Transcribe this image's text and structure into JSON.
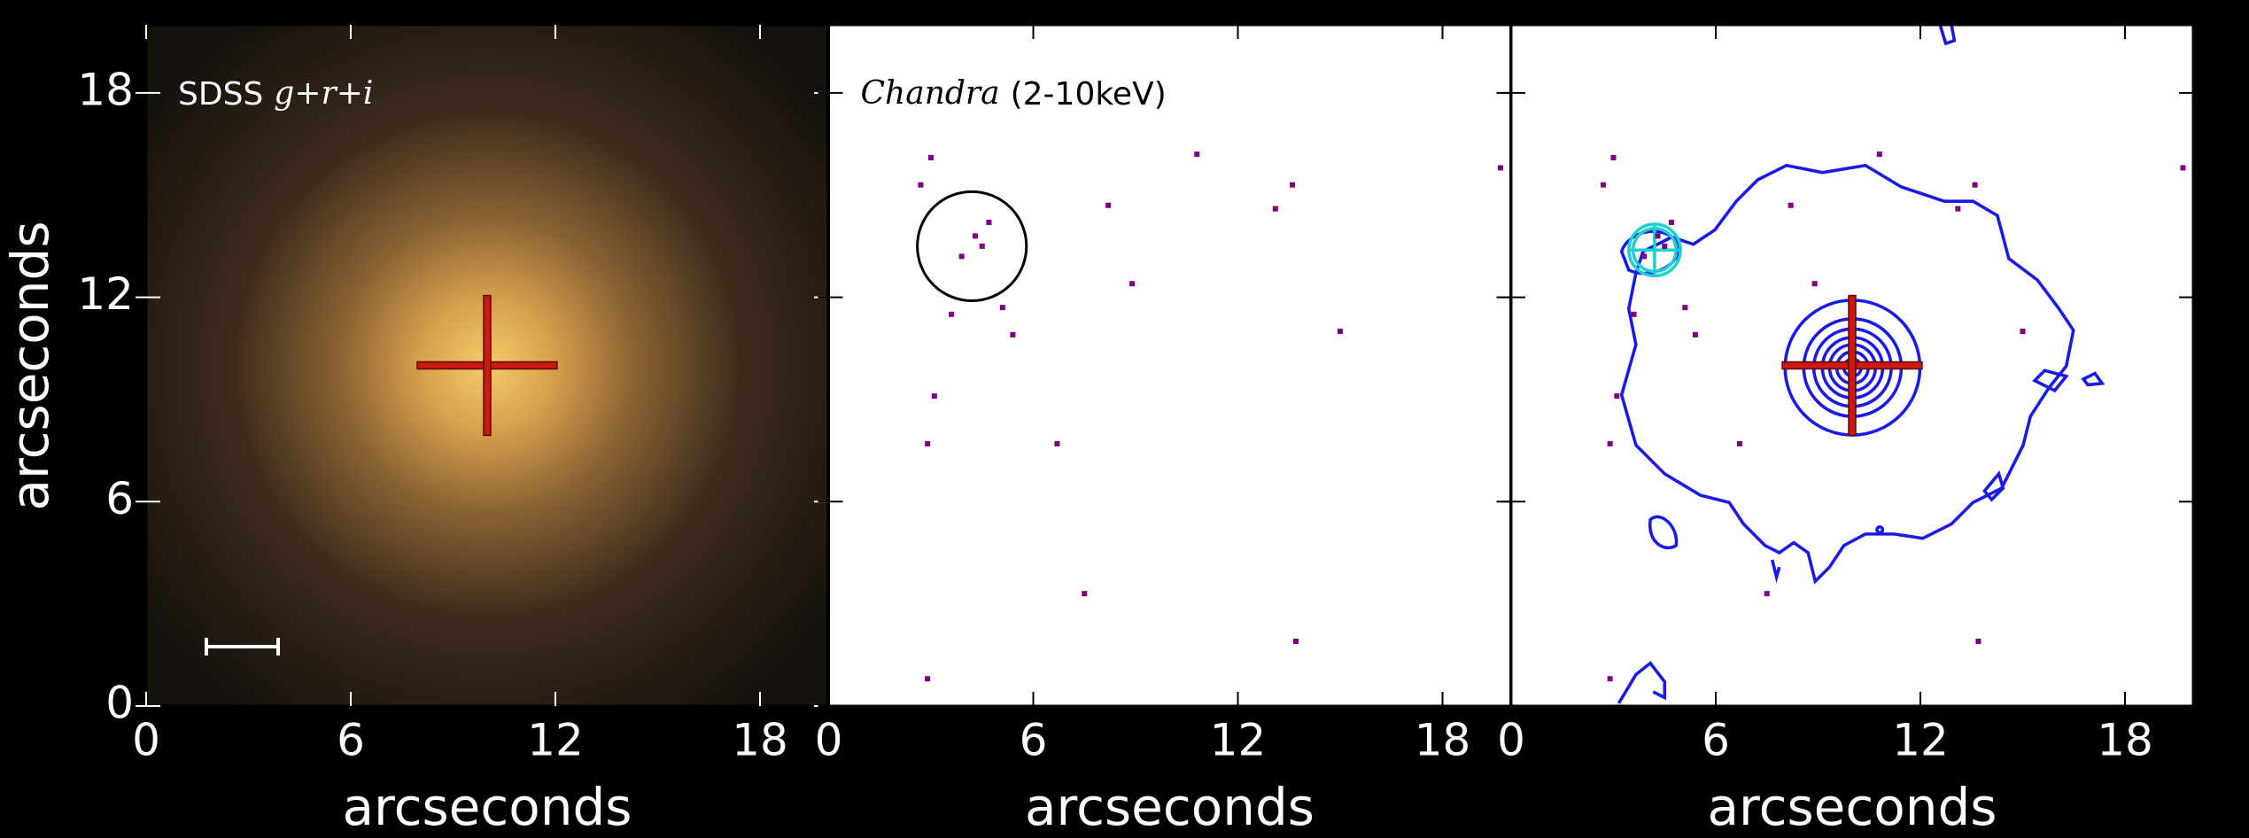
{
  "chart_data": [
    {
      "type": "image",
      "annotation": [
        "SDSS",
        "g+r+i"
      ],
      "xlabel": "arcseconds",
      "ylabel": "arcseconds",
      "xlim": [
        0,
        20
      ],
      "ylim": [
        0,
        20
      ],
      "xticks": [
        0,
        6,
        12,
        18
      ],
      "yticks": [
        0,
        6,
        12,
        18
      ],
      "cross": [
        10,
        10
      ],
      "cross_color": "#cc1a10"
    },
    {
      "type": "counts",
      "annotation": [
        "Chandra",
        "(2-10keV)"
      ],
      "xlabel": "arcseconds",
      "xlim": [
        0,
        20
      ],
      "ylim": [
        0,
        20
      ],
      "xticks": [
        0,
        6,
        12,
        18
      ],
      "yticks": [
        0,
        6,
        12,
        18
      ],
      "color": "#800080",
      "x": [
        3.0,
        2.7,
        4.3,
        4.5,
        3.9,
        4.7,
        5.1,
        5.4,
        3.6,
        2.9,
        6.7,
        7.5,
        8.9,
        8.2,
        10.8,
        13.1,
        13.6,
        15.0,
        13.7,
        2.9,
        19.7,
        3.1
      ],
      "y": [
        16.1,
        15.3,
        13.8,
        13.5,
        13.2,
        14.2,
        11.7,
        10.9,
        11.5,
        7.7,
        7.7,
        3.3,
        12.4,
        14.7,
        16.2,
        14.6,
        15.3,
        11.0,
        1.9,
        0.8,
        15.8,
        9.1
      ],
      "circle": {
        "x": 4.2,
        "y": 13.5,
        "r": 1.6
      }
    },
    {
      "type": "contours",
      "xlabel": "arcseconds",
      "xlim": [
        0,
        20
      ],
      "ylim": [
        0,
        20
      ],
      "xticks": [
        0,
        6,
        12,
        18
      ],
      "yticks": [
        0,
        6,
        12,
        18
      ],
      "color": "#800080",
      "x": [
        3.0,
        2.7,
        4.3,
        4.5,
        3.9,
        4.7,
        5.1,
        5.4,
        3.6,
        2.9,
        6.7,
        7.5,
        8.9,
        8.2,
        10.8,
        13.1,
        13.6,
        15.0,
        13.7,
        2.9,
        19.7,
        3.1
      ],
      "y": [
        16.1,
        15.3,
        13.8,
        13.5,
        13.2,
        14.2,
        11.7,
        10.9,
        11.5,
        7.7,
        7.7,
        3.3,
        12.4,
        14.7,
        16.2,
        14.6,
        15.3,
        11.0,
        1.9,
        0.8,
        15.8,
        9.1
      ],
      "cross": [
        10,
        10
      ],
      "cross_color": "#cc1a10"
    }
  ]
}
